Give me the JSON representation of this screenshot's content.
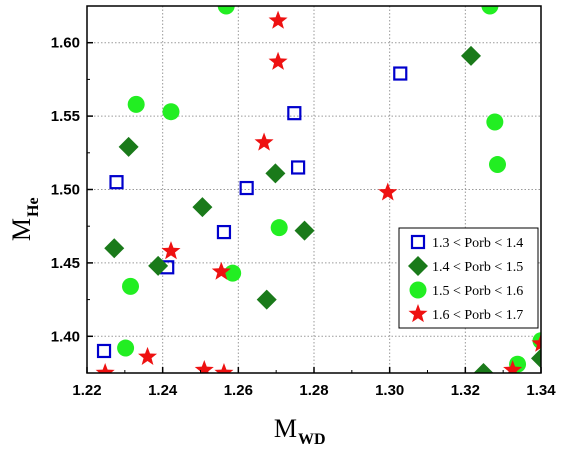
{
  "chart_data": {
    "type": "scatter",
    "xlabel": "M",
    "xlabel_sub": "WD",
    "ylabel": "M",
    "ylabel_sub": "He",
    "xlim": [
      1.22,
      1.34
    ],
    "ylim": [
      1.375,
      1.625
    ],
    "xticks": [
      1.22,
      1.24,
      1.26,
      1.28,
      1.3,
      1.32,
      1.34
    ],
    "xtick_labels": [
      "1.22",
      "1.24",
      "1.26",
      "1.28",
      "1.30",
      "1.32",
      "1.34"
    ],
    "yticks": [
      1.4,
      1.45,
      1.5,
      1.55,
      1.6
    ],
    "ytick_labels": [
      "1.40",
      "1.45",
      "1.50",
      "1.55",
      "1.60"
    ],
    "grid": true,
    "legend_position": "lower-right",
    "series": [
      {
        "name": "1.3 < Porb < 1.4",
        "marker": "open-square",
        "color": "#0000cc",
        "points": [
          [
            1.2245,
            1.39
          ],
          [
            1.2278,
            1.505
          ],
          [
            1.2412,
            1.447
          ],
          [
            1.2562,
            1.471
          ],
          [
            1.2622,
            1.501
          ],
          [
            1.2748,
            1.552
          ],
          [
            1.2758,
            1.515
          ],
          [
            1.3028,
            1.579
          ]
        ]
      },
      {
        "name": "1.4 < Porb < 1.5",
        "marker": "diamond",
        "color": "#1a7a1a",
        "points": [
          [
            1.2272,
            1.46
          ],
          [
            1.231,
            1.529
          ],
          [
            1.2388,
            1.448
          ],
          [
            1.2505,
            1.488
          ],
          [
            1.2675,
            1.425
          ],
          [
            1.2698,
            1.511
          ],
          [
            1.2775,
            1.472
          ],
          [
            1.3215,
            1.591
          ],
          [
            1.3248,
            1.375
          ],
          [
            1.34,
            1.385
          ]
        ]
      },
      {
        "name": "1.5 < Porb < 1.6",
        "marker": "circle",
        "color": "#22ee22",
        "points": [
          [
            1.2302,
            1.392
          ],
          [
            1.2315,
            1.434
          ],
          [
            1.233,
            1.558
          ],
          [
            1.2422,
            1.553
          ],
          [
            1.2568,
            1.625
          ],
          [
            1.2585,
            1.443
          ],
          [
            1.2708,
            1.474
          ],
          [
            1.3265,
            1.625
          ],
          [
            1.3278,
            1.546
          ],
          [
            1.3285,
            1.517
          ],
          [
            1.3338,
            1.381
          ],
          [
            1.34,
            1.397
          ]
        ]
      },
      {
        "name": "1.6 < Porb < 1.7",
        "marker": "star",
        "color": "#ee1111",
        "points": [
          [
            1.2248,
            1.375
          ],
          [
            1.236,
            1.386
          ],
          [
            1.2422,
            1.458
          ],
          [
            1.251,
            1.377
          ],
          [
            1.2555,
            1.444
          ],
          [
            1.2562,
            1.375
          ],
          [
            1.2668,
            1.532
          ],
          [
            1.2705,
            1.587
          ],
          [
            1.2705,
            1.615
          ],
          [
            1.2995,
            1.498
          ],
          [
            1.3325,
            1.377
          ],
          [
            1.34,
            1.395
          ]
        ]
      }
    ]
  }
}
